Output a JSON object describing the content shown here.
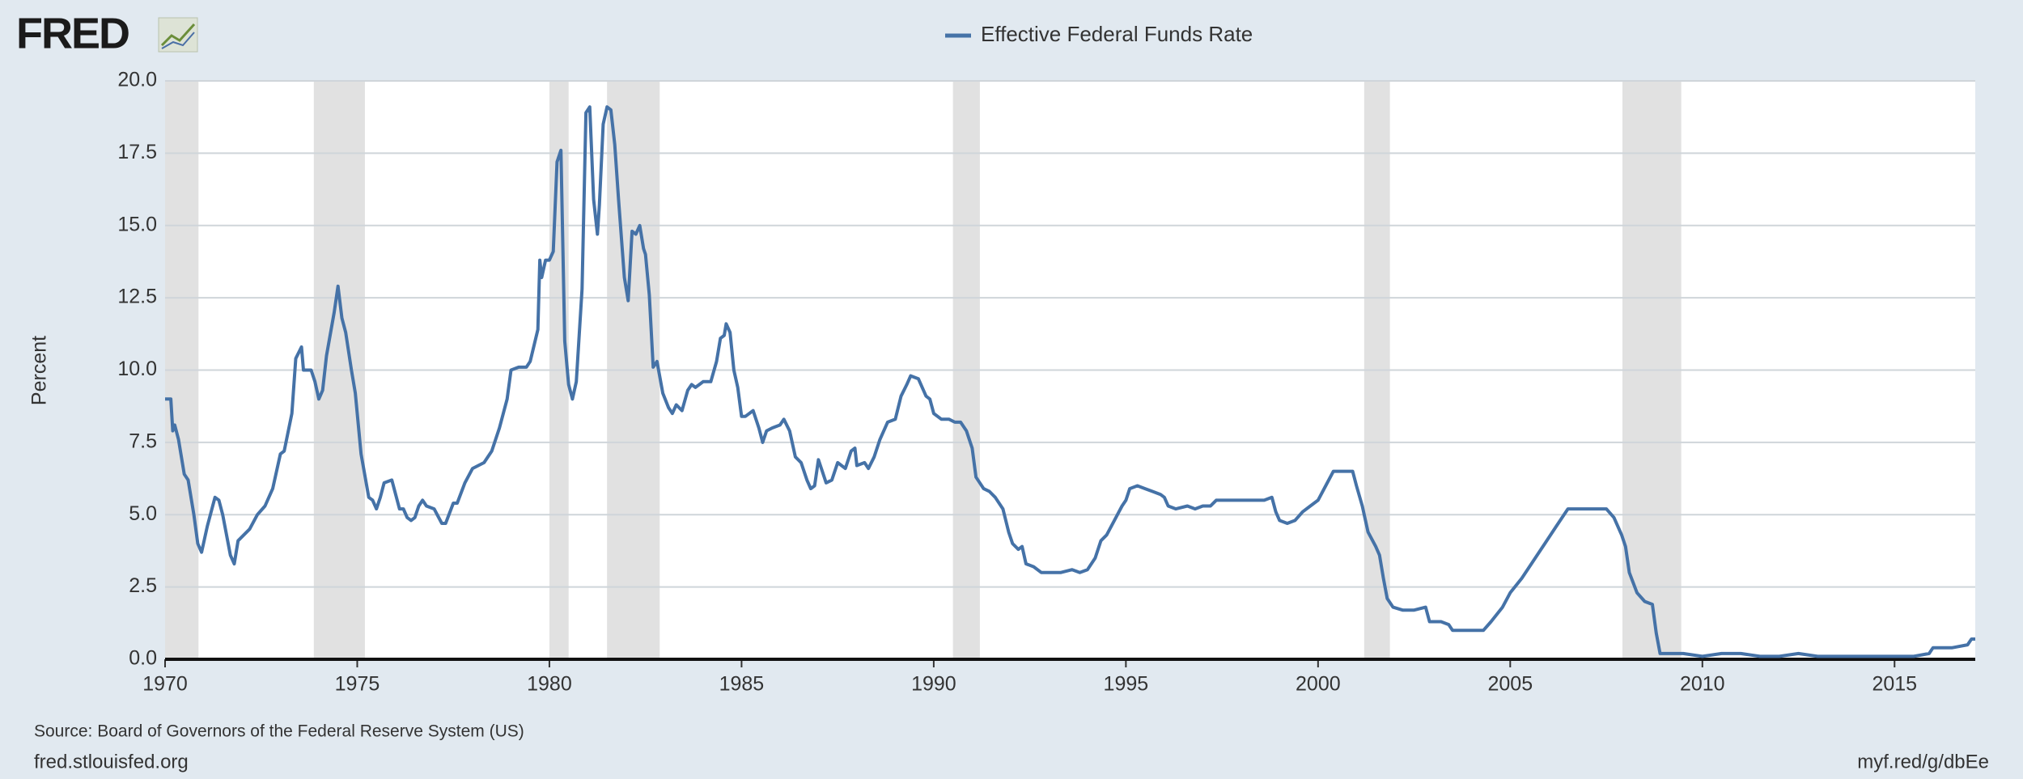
{
  "logo": "FRED",
  "chart_data": {
    "type": "line",
    "ylabel": "Percent",
    "source": "Source: Board of Governors of the Federal Reserve System (US)",
    "site": "fred.stlouisfed.org",
    "short_url": "myf.red/g/dbEe",
    "xlim": [
      1970,
      2017.1
    ],
    "xticks": [
      1970,
      1975,
      1980,
      1985,
      1990,
      1995,
      2000,
      2005,
      2010,
      2015
    ],
    "ylim": [
      0,
      20
    ],
    "yticks": [
      {
        "value": 0,
        "label": "0.0"
      },
      {
        "value": 2.5,
        "label": "2.5"
      },
      {
        "value": 5,
        "label": "5.0"
      },
      {
        "value": 7.5,
        "label": "7.5"
      },
      {
        "value": 10,
        "label": "10.0"
      },
      {
        "value": 12.5,
        "label": "12.5"
      },
      {
        "value": 15,
        "label": "15.0"
      },
      {
        "value": 17.5,
        "label": "17.5"
      },
      {
        "value": 20,
        "label": "20.0"
      }
    ],
    "grid": true,
    "recession_color": "#e1e1e1",
    "recessions": [
      [
        1969.92,
        1970.87
      ],
      [
        1973.87,
        1975.2
      ],
      [
        1980.0,
        1980.5
      ],
      [
        1981.5,
        1982.87
      ],
      [
        1990.5,
        1991.2
      ],
      [
        2001.2,
        2001.87
      ],
      [
        2007.92,
        2009.45
      ]
    ],
    "x": [
      1970.0,
      1970.15,
      1970.2,
      1970.25,
      1970.35,
      1970.5,
      1970.6,
      1970.75,
      1970.85,
      1970.95,
      1971.1,
      1971.3,
      1971.4,
      1971.5,
      1971.7,
      1971.8,
      1971.9,
      1972.2,
      1972.4,
      1972.6,
      1972.8,
      1973.0,
      1973.1,
      1973.3,
      1973.4,
      1973.55,
      1973.6,
      1973.8,
      1973.9,
      1974.0,
      1974.1,
      1974.2,
      1974.4,
      1974.5,
      1974.6,
      1974.7,
      1974.85,
      1974.95,
      1975.1,
      1975.3,
      1975.4,
      1975.5,
      1975.6,
      1975.7,
      1975.9,
      1976.1,
      1976.2,
      1976.3,
      1976.4,
      1976.5,
      1976.6,
      1976.7,
      1976.8,
      1977.0,
      1977.2,
      1977.3,
      1977.5,
      1977.6,
      1977.8,
      1978.0,
      1978.3,
      1978.5,
      1978.7,
      1978.9,
      1979.0,
      1979.2,
      1979.4,
      1979.5,
      1979.7,
      1979.75,
      1979.8,
      1979.9,
      1980.0,
      1980.1,
      1980.2,
      1980.3,
      1980.4,
      1980.5,
      1980.6,
      1980.7,
      1980.85,
      1980.95,
      1981.05,
      1981.15,
      1981.25,
      1981.3,
      1981.4,
      1981.5,
      1981.6,
      1981.7,
      1981.8,
      1981.95,
      1982.05,
      1982.15,
      1982.25,
      1982.35,
      1982.45,
      1982.5,
      1982.6,
      1982.7,
      1982.8,
      1982.95,
      1983.1,
      1983.2,
      1983.3,
      1983.45,
      1983.6,
      1983.7,
      1983.8,
      1983.9,
      1984.0,
      1984.2,
      1984.35,
      1984.45,
      1984.55,
      1984.6,
      1984.7,
      1984.8,
      1984.9,
      1985.0,
      1985.1,
      1985.3,
      1985.45,
      1985.55,
      1985.65,
      1985.8,
      1986.0,
      1986.1,
      1986.25,
      1986.4,
      1986.55,
      1986.7,
      1986.8,
      1986.9,
      1987.0,
      1987.1,
      1987.2,
      1987.35,
      1987.5,
      1987.7,
      1987.85,
      1987.95,
      1988.0,
      1988.2,
      1988.3,
      1988.45,
      1988.6,
      1988.8,
      1989.0,
      1989.15,
      1989.3,
      1989.4,
      1989.6,
      1989.8,
      1989.9,
      1990.0,
      1990.2,
      1990.4,
      1990.55,
      1990.7,
      1990.85,
      1991.0,
      1991.1,
      1991.3,
      1991.45,
      1991.6,
      1991.8,
      1991.95,
      1992.05,
      1992.2,
      1992.3,
      1992.4,
      1992.6,
      1992.8,
      1993.0,
      1993.3,
      1993.6,
      1993.8,
      1994.0,
      1994.2,
      1994.35,
      1994.5,
      1994.7,
      1994.9,
      1995.0,
      1995.1,
      1995.3,
      1995.5,
      1995.7,
      1995.9,
      1996.0,
      1996.1,
      1996.3,
      1996.6,
      1996.8,
      1997.0,
      1997.2,
      1997.35,
      1997.6,
      1998.0,
      1998.3,
      1998.6,
      1998.8,
      1998.9,
      1999.0,
      1999.2,
      1999.4,
      1999.6,
      1999.8,
      2000.0,
      2000.2,
      2000.4,
      2000.6,
      2000.9,
      2001.0,
      2001.15,
      2001.3,
      2001.5,
      2001.6,
      2001.7,
      2001.8,
      2001.95,
      2002.2,
      2002.5,
      2002.8,
      2002.9,
      2003.2,
      2003.4,
      2003.5,
      2003.8,
      2004.0,
      2004.3,
      2004.5,
      2004.8,
      2005.0,
      2005.3,
      2005.6,
      2005.9,
      2006.2,
      2006.5,
      2006.8,
      2007.0,
      2007.5,
      2007.7,
      2007.9,
      2008.0,
      2008.1,
      2008.3,
      2008.5,
      2008.7,
      2008.8,
      2008.9,
      2009.1,
      2009.5,
      2010.0,
      2010.5,
      2011.0,
      2011.5,
      2012.0,
      2012.5,
      2013.0,
      2013.5,
      2014.0,
      2014.5,
      2015.0,
      2015.5,
      2015.9,
      2016.0,
      2016.5,
      2016.9,
      2017.0,
      2017.1
    ],
    "series": [
      {
        "name": "Effective Federal Funds Rate",
        "color": "#4572a7",
        "values": [
          9.0,
          9.0,
          7.9,
          8.1,
          7.6,
          6.4,
          6.2,
          5.0,
          4.0,
          3.7,
          4.6,
          5.6,
          5.5,
          5.0,
          3.6,
          3.3,
          4.1,
          4.5,
          5.0,
          5.3,
          5.9,
          7.1,
          7.2,
          8.5,
          10.4,
          10.8,
          10.0,
          10.0,
          9.6,
          9.0,
          9.3,
          10.5,
          12.0,
          12.9,
          11.8,
          11.3,
          10.0,
          9.2,
          7.1,
          5.6,
          5.5,
          5.2,
          5.6,
          6.1,
          6.2,
          5.2,
          5.2,
          4.9,
          4.8,
          4.9,
          5.3,
          5.5,
          5.3,
          5.2,
          4.7,
          4.7,
          5.4,
          5.4,
          6.1,
          6.6,
          6.8,
          7.2,
          8.0,
          9.0,
          10.0,
          10.1,
          10.1,
          10.3,
          11.4,
          13.8,
          13.2,
          13.8,
          13.8,
          14.1,
          17.2,
          17.6,
          11.0,
          9.5,
          9.0,
          9.6,
          12.8,
          18.9,
          19.1,
          15.9,
          14.7,
          15.7,
          18.5,
          19.1,
          19.0,
          17.8,
          15.9,
          13.2,
          12.4,
          14.8,
          14.7,
          15.0,
          14.2,
          14.0,
          12.6,
          10.1,
          10.3,
          9.2,
          8.7,
          8.5,
          8.8,
          8.6,
          9.3,
          9.5,
          9.4,
          9.5,
          9.6,
          9.6,
          10.3,
          11.1,
          11.2,
          11.6,
          11.3,
          10.0,
          9.4,
          8.4,
          8.4,
          8.6,
          8.0,
          7.5,
          7.9,
          8.0,
          8.1,
          8.3,
          7.9,
          7.0,
          6.8,
          6.2,
          5.9,
          6.0,
          6.9,
          6.5,
          6.1,
          6.2,
          6.8,
          6.6,
          7.2,
          7.3,
          6.7,
          6.8,
          6.6,
          7.0,
          7.6,
          8.2,
          8.3,
          9.1,
          9.5,
          9.8,
          9.7,
          9.1,
          9.0,
          8.5,
          8.3,
          8.3,
          8.2,
          8.2,
          7.9,
          7.3,
          6.3,
          5.9,
          5.8,
          5.6,
          5.2,
          4.4,
          4.0,
          3.8,
          3.9,
          3.3,
          3.2,
          3.0,
          3.0,
          3.0,
          3.1,
          3.0,
          3.1,
          3.5,
          4.1,
          4.3,
          4.8,
          5.3,
          5.5,
          5.9,
          6.0,
          5.9,
          5.8,
          5.7,
          5.6,
          5.3,
          5.2,
          5.3,
          5.2,
          5.3,
          5.3,
          5.5,
          5.5,
          5.5,
          5.5,
          5.5,
          5.6,
          5.1,
          4.8,
          4.7,
          4.8,
          5.1,
          5.3,
          5.5,
          6.0,
          6.5,
          6.5,
          6.5,
          6.0,
          5.3,
          4.4,
          3.9,
          3.6,
          2.8,
          2.1,
          1.8,
          1.7,
          1.7,
          1.8,
          1.3,
          1.3,
          1.2,
          1.0,
          1.0,
          1.0,
          1.0,
          1.3,
          1.8,
          2.3,
          2.8,
          3.4,
          4.0,
          4.6,
          5.2,
          5.2,
          5.2,
          5.2,
          4.9,
          4.3,
          3.9,
          3.0,
          2.3,
          2.0,
          1.9,
          0.9,
          0.2,
          0.2,
          0.2,
          0.1,
          0.2,
          0.2,
          0.1,
          0.1,
          0.2,
          0.1,
          0.1,
          0.1,
          0.1,
          0.1,
          0.1,
          0.2,
          0.4,
          0.4,
          0.5,
          0.7,
          0.7
        ]
      }
    ]
  }
}
